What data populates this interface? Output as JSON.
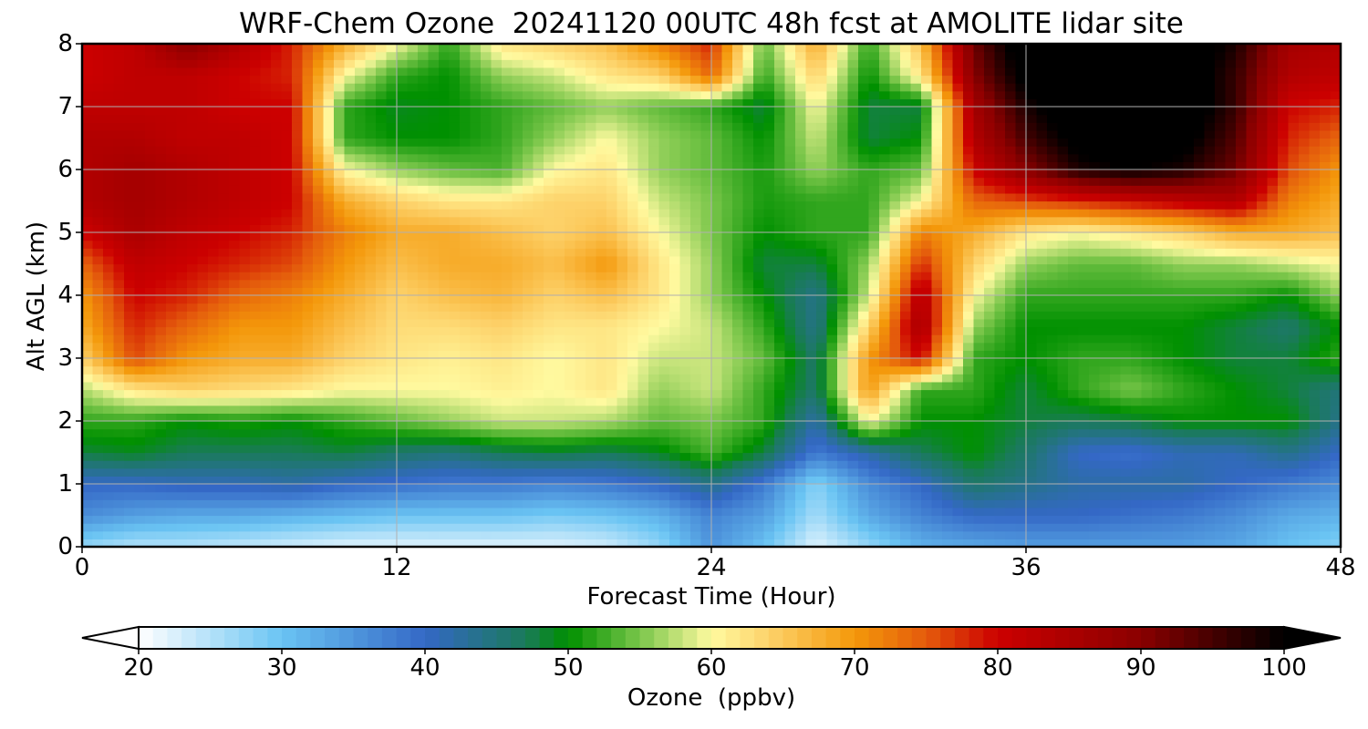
{
  "chart_data": {
    "type": "heatmap",
    "title": "WRF-Chem Ozone  20241120 00UTC 48h fcst at AMOLITE lidar site",
    "xlabel": "Forecast Time (Hour)",
    "ylabel": "Alt AGL (km)",
    "x_ticks": [
      0,
      12,
      24,
      36,
      48
    ],
    "y_ticks": [
      0,
      1,
      2,
      3,
      4,
      5,
      6,
      7,
      8
    ],
    "xlim": [
      0,
      48
    ],
    "ylim": [
      0,
      8
    ],
    "grid": true,
    "x": [
      0,
      2,
      4,
      6,
      8,
      10,
      12,
      14,
      16,
      18,
      20,
      22,
      24,
      26,
      28,
      30,
      32,
      34,
      36,
      38,
      40,
      42,
      44,
      46,
      48
    ],
    "y": [
      0,
      0.5,
      1,
      1.5,
      2,
      2.5,
      3,
      3.5,
      4,
      4.5,
      5,
      5.5,
      6,
      6.5,
      7,
      7.5,
      8
    ],
    "z": [
      [
        27,
        25,
        25,
        24,
        23,
        22,
        22,
        22,
        22,
        22,
        23,
        27,
        35,
        30,
        22,
        27,
        32,
        33,
        34,
        34,
        34,
        34,
        33,
        30,
        28
      ],
      [
        36,
        34,
        33,
        33,
        32,
        31,
        30,
        30,
        30,
        29,
        30,
        32,
        37,
        34,
        26,
        33,
        37,
        40,
        40,
        40,
        39,
        38,
        36,
        33,
        32
      ],
      [
        40,
        40,
        41,
        41,
        42,
        40,
        39,
        38,
        38,
        37,
        38,
        40,
        44,
        38,
        28,
        36,
        40,
        46,
        44,
        42,
        42,
        42,
        40,
        38,
        36
      ],
      [
        48,
        49,
        47,
        47,
        47,
        48,
        46,
        45,
        47,
        48,
        47,
        49,
        53,
        48,
        38,
        42,
        47,
        50,
        46,
        40,
        39,
        41,
        41,
        44,
        40
      ],
      [
        52,
        52,
        50,
        51,
        50,
        52,
        54,
        56,
        58,
        58,
        57,
        54,
        55,
        52,
        42,
        60,
        50,
        50,
        48,
        47,
        48,
        50,
        50,
        50,
        44
      ],
      [
        57,
        62,
        64,
        63,
        62,
        60,
        60,
        60,
        61,
        60,
        62,
        56,
        58,
        52,
        46,
        70,
        52,
        52,
        48,
        52,
        55,
        52,
        50,
        48,
        45
      ],
      [
        64,
        76,
        70,
        68,
        68,
        64,
        62,
        61,
        62,
        60,
        62,
        58,
        58,
        54,
        46,
        70,
        80,
        52,
        50,
        52,
        52,
        50,
        48,
        48,
        52
      ],
      [
        68,
        78,
        74,
        70,
        70,
        66,
        63,
        63,
        64,
        62,
        62,
        60,
        58,
        52,
        44,
        64,
        86,
        56,
        50,
        50,
        50,
        50,
        48,
        46,
        50
      ],
      [
        70,
        80,
        78,
        74,
        72,
        68,
        64,
        66,
        67,
        64,
        66,
        62,
        56,
        50,
        44,
        58,
        84,
        60,
        52,
        52,
        52,
        52,
        52,
        50,
        56
      ],
      [
        74,
        82,
        80,
        78,
        76,
        70,
        66,
        68,
        68,
        66,
        70,
        62,
        56,
        48,
        48,
        56,
        78,
        64,
        56,
        54,
        54,
        56,
        56,
        58,
        60
      ],
      [
        80,
        85,
        82,
        80,
        78,
        72,
        68,
        68,
        66,
        64,
        66,
        60,
        55,
        50,
        52,
        52,
        72,
        68,
        62,
        60,
        62,
        64,
        68,
        68,
        66
      ],
      [
        84,
        86,
        84,
        82,
        80,
        68,
        64,
        62,
        62,
        64,
        64,
        58,
        55,
        51,
        52,
        52,
        60,
        74,
        76,
        78,
        80,
        82,
        84,
        72,
        68
      ],
      [
        84,
        86,
        84,
        82,
        80,
        60,
        56,
        54,
        53,
        60,
        62,
        56,
        54,
        51,
        56,
        52,
        54,
        80,
        90,
        98,
        100,
        98,
        92,
        76,
        70
      ],
      [
        84,
        84,
        82,
        82,
        80,
        52,
        50,
        50,
        52,
        56,
        60,
        56,
        54,
        50,
        58,
        48,
        50,
        84,
        95,
        102,
        104,
        102,
        94,
        78,
        74
      ],
      [
        82,
        82,
        82,
        80,
        80,
        52,
        49,
        50,
        52,
        54,
        56,
        54,
        52,
        48,
        60,
        48,
        48,
        86,
        98,
        105,
        106,
        104,
        96,
        80,
        78
      ],
      [
        80,
        82,
        82,
        80,
        78,
        60,
        52,
        50,
        56,
        58,
        62,
        64,
        74,
        52,
        64,
        50,
        62,
        90,
        102,
        106,
        106,
        104,
        96,
        84,
        82
      ],
      [
        80,
        82,
        90,
        84,
        78,
        68,
        60,
        52,
        62,
        64,
        66,
        72,
        78,
        54,
        68,
        52,
        66,
        92,
        104,
        106,
        106,
        104,
        98,
        86,
        84
      ]
    ],
    "colorbar": {
      "label": "Ozone  (ppbv)",
      "min": 20,
      "max": 100,
      "ticks": [
        20,
        30,
        40,
        50,
        60,
        70,
        80,
        90,
        100
      ],
      "extend": "both",
      "stops": [
        {
          "v": 20,
          "c": "#ffffff"
        },
        {
          "v": 30,
          "c": "#6ac4f3"
        },
        {
          "v": 40,
          "c": "#3468c6"
        },
        {
          "v": 47,
          "c": "#1a7a5a"
        },
        {
          "v": 50,
          "c": "#009000"
        },
        {
          "v": 55,
          "c": "#7ac64a"
        },
        {
          "v": 60,
          "c": "#fffaa0"
        },
        {
          "v": 64,
          "c": "#fdd26a"
        },
        {
          "v": 70,
          "c": "#f4980a"
        },
        {
          "v": 75,
          "c": "#e45b0c"
        },
        {
          "v": 80,
          "c": "#cc0000"
        },
        {
          "v": 90,
          "c": "#8a0000"
        },
        {
          "v": 100,
          "c": "#000000"
        }
      ]
    }
  }
}
